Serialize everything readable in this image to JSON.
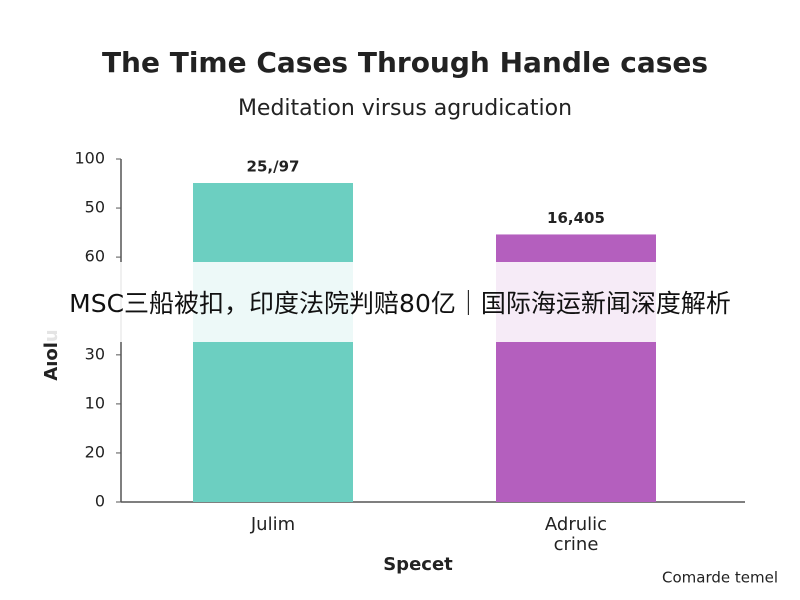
{
  "chart_data": {
    "type": "bar",
    "title": "The Time Cases Through Handle cases",
    "subtitle": "Meditation virsus agrudication",
    "x_label": "Specet",
    "y_label": "Aıolu",
    "footer": "Comarde temel",
    "categories": [
      "Julim",
      "Adrulic crine"
    ],
    "values": [
      93,
      78
    ],
    "colors": [
      "#6ccfc1",
      "#b45fbe"
    ],
    "annotations": [
      "25,/97",
      "16,405"
    ],
    "ylim": [
      0,
      100
    ],
    "yticks": [
      0,
      {
        "value": 14.3,
        "label": "20"
      },
      {
        "value": 28.6,
        "label": "10"
      },
      {
        "value": 42.9,
        "label": "30"
      },
      {
        "value": 71.4,
        "label": "60"
      },
      {
        "value": 85.7,
        "label": "50"
      },
      100
    ],
    "grid": false
  },
  "banner": "MSC三船被扣，印度法院判赔80亿｜国际海运新闻深度解析"
}
